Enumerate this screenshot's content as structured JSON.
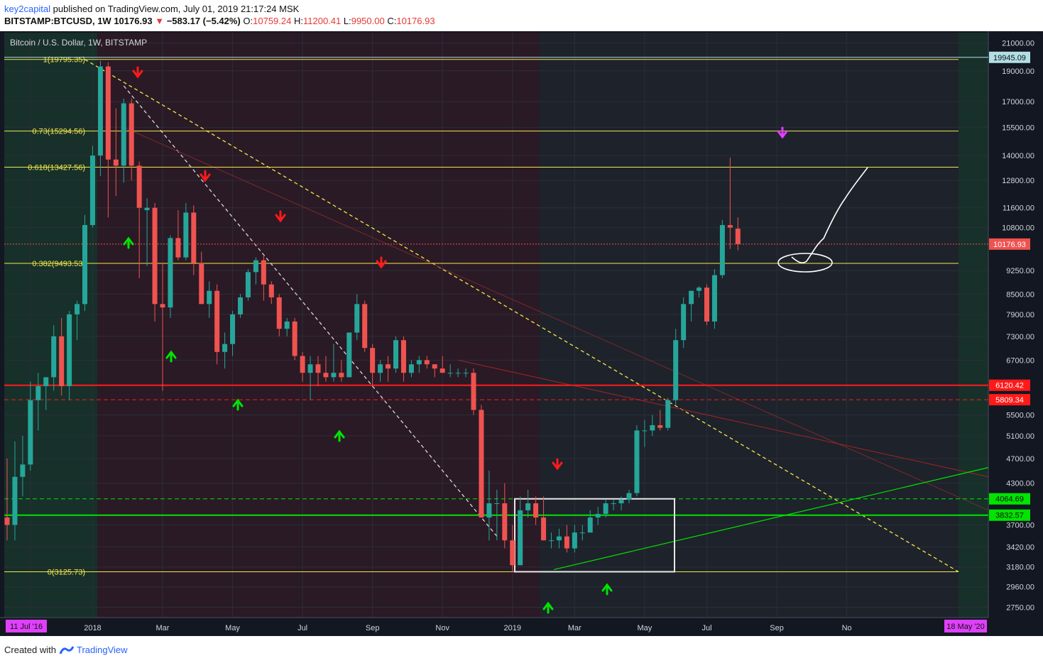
{
  "header": {
    "author": "key2capital",
    "published": "published on TradingView.com, July 01, 2019 21:17:24 MSK",
    "symbol": "BITSTAMP:BTCUSD, 1W",
    "last": "10176.93",
    "arrow": "▼",
    "change": "−583.17 (−5.42%)",
    "o_label": "O:",
    "o": "10759.24",
    "h_label": "H:",
    "h": "11200.41",
    "l_label": "L:",
    "l": "9950.00",
    "c_label": "C:",
    "c": "10176.93"
  },
  "chart_title": "Bitcoin / U.S. Dollar, 1W, BITSTAMP",
  "footer": {
    "created": "Created with",
    "brand": "TradingView"
  },
  "colors": {
    "up": "#26a69a",
    "down": "#ef5350",
    "fib": "#f5e84b",
    "support": "#00e400",
    "resistance": "#ff1a1a",
    "badge_time": "#e040fb"
  },
  "chart_data": {
    "type": "candlestick",
    "title": "Bitcoin / U.S. Dollar, 1W, BITSTAMP",
    "ylim": [
      2650,
      21800
    ],
    "y_ticks": [
      21000,
      19000,
      17000,
      15500,
      14000,
      12800,
      11600,
      10800,
      9250,
      8500,
      7900,
      7300,
      6700,
      5500,
      5100,
      4700,
      4300,
      3700,
      3420,
      3180,
      2960,
      2750
    ],
    "y_tick_labels": [
      "21000.00",
      "19000.00",
      "17000.00",
      "15500.00",
      "14000.00",
      "12800.00",
      "11600.00",
      "10800.00",
      "9250.00",
      "8500.00",
      "7900.00",
      "7300.00",
      "6700.00",
      "5500.00",
      "5100.00",
      "4700.00",
      "4300.00",
      "3700.00",
      "3420.00",
      "3180.00",
      "2960.00",
      "2750.00"
    ],
    "x_ticks": [
      "Nov",
      "2018",
      "Mar",
      "May",
      "Jul",
      "Sep",
      "Nov",
      "2019",
      "Mar",
      "May",
      "Jul",
      "Sep",
      "No"
    ],
    "x_tick_index": [
      3,
      11,
      20,
      29,
      38,
      47,
      56,
      65,
      73,
      82,
      90,
      99,
      108
    ],
    "x_start_badge": "11 Jul '16",
    "x_end_badge": "18 May '20",
    "candles": [
      {
        "o": 3800,
        "h": 4700,
        "l": 3500,
        "c": 3700
      },
      {
        "o": 3700,
        "h": 5000,
        "l": 3500,
        "c": 4400
      },
      {
        "o": 4400,
        "h": 5100,
        "l": 4100,
        "c": 4600
      },
      {
        "o": 4600,
        "h": 6200,
        "l": 4500,
        "c": 5800
      },
      {
        "o": 5800,
        "h": 6400,
        "l": 5200,
        "c": 6100
      },
      {
        "o": 6100,
        "h": 6300,
        "l": 5600,
        "c": 6300
      },
      {
        "o": 6300,
        "h": 7600,
        "l": 6000,
        "c": 7300
      },
      {
        "o": 7300,
        "h": 7800,
        "l": 5900,
        "c": 6100
      },
      {
        "o": 6100,
        "h": 8000,
        "l": 5800,
        "c": 7900
      },
      {
        "o": 7900,
        "h": 8300,
        "l": 7200,
        "c": 8200
      },
      {
        "o": 8200,
        "h": 11300,
        "l": 8000,
        "c": 10900
      },
      {
        "o": 10900,
        "h": 14500,
        "l": 10800,
        "c": 14000
      },
      {
        "o": 14000,
        "h": 19700,
        "l": 13000,
        "c": 19300
      },
      {
        "o": 19300,
        "h": 19600,
        "l": 11200,
        "c": 13800
      },
      {
        "o": 13800,
        "h": 16600,
        "l": 12100,
        "c": 13500
      },
      {
        "o": 13500,
        "h": 17200,
        "l": 12700,
        "c": 16900
      },
      {
        "o": 16900,
        "h": 17200,
        "l": 12800,
        "c": 13500
      },
      {
        "o": 13500,
        "h": 13700,
        "l": 9000,
        "c": 11600
      },
      {
        "o": 11500,
        "h": 12000,
        "l": 9400,
        "c": 11600
      },
      {
        "o": 11600,
        "h": 11800,
        "l": 7700,
        "c": 8200
      },
      {
        "o": 8200,
        "h": 9500,
        "l": 6000,
        "c": 8100
      },
      {
        "o": 8100,
        "h": 10500,
        "l": 7800,
        "c": 10400
      },
      {
        "o": 10400,
        "h": 11500,
        "l": 9600,
        "c": 9700
      },
      {
        "o": 9700,
        "h": 11800,
        "l": 9600,
        "c": 11400
      },
      {
        "o": 11400,
        "h": 11700,
        "l": 9100,
        "c": 9500
      },
      {
        "o": 9500,
        "h": 9900,
        "l": 8200,
        "c": 8200
      },
      {
        "o": 8200,
        "h": 8900,
        "l": 7800,
        "c": 8600
      },
      {
        "o": 8600,
        "h": 8800,
        "l": 6600,
        "c": 6900
      },
      {
        "o": 6900,
        "h": 7400,
        "l": 6500,
        "c": 7100
      },
      {
        "o": 7100,
        "h": 8000,
        "l": 6800,
        "c": 7900
      },
      {
        "o": 7900,
        "h": 8500,
        "l": 7800,
        "c": 8400
      },
      {
        "o": 8400,
        "h": 9300,
        "l": 8300,
        "c": 9200
      },
      {
        "o": 9200,
        "h": 9700,
        "l": 8800,
        "c": 9600
      },
      {
        "o": 9600,
        "h": 9800,
        "l": 8300,
        "c": 8800
      },
      {
        "o": 8800,
        "h": 8900,
        "l": 8200,
        "c": 8400
      },
      {
        "o": 8400,
        "h": 8500,
        "l": 7300,
        "c": 7500
      },
      {
        "o": 7500,
        "h": 7800,
        "l": 7300,
        "c": 7700
      },
      {
        "o": 7700,
        "h": 7800,
        "l": 6700,
        "c": 6800
      },
      {
        "o": 6800,
        "h": 6900,
        "l": 6200,
        "c": 6400
      },
      {
        "o": 6400,
        "h": 6800,
        "l": 5800,
        "c": 6600
      },
      {
        "o": 6600,
        "h": 6800,
        "l": 6100,
        "c": 6400
      },
      {
        "o": 6400,
        "h": 6800,
        "l": 6200,
        "c": 6300
      },
      {
        "o": 6300,
        "h": 7100,
        "l": 6200,
        "c": 6400
      },
      {
        "o": 6400,
        "h": 6700,
        "l": 6200,
        "c": 6300
      },
      {
        "o": 6300,
        "h": 7400,
        "l": 6300,
        "c": 7400
      },
      {
        "o": 7400,
        "h": 8500,
        "l": 7200,
        "c": 8200
      },
      {
        "o": 8200,
        "h": 8300,
        "l": 6900,
        "c": 7000
      },
      {
        "o": 7000,
        "h": 7100,
        "l": 6100,
        "c": 6400
      },
      {
        "o": 6400,
        "h": 6700,
        "l": 6200,
        "c": 6600
      },
      {
        "o": 6600,
        "h": 6800,
        "l": 6200,
        "c": 6500
      },
      {
        "o": 6500,
        "h": 7300,
        "l": 6400,
        "c": 7200
      },
      {
        "o": 7200,
        "h": 7300,
        "l": 6200,
        "c": 6400
      },
      {
        "o": 6400,
        "h": 6700,
        "l": 6300,
        "c": 6600
      },
      {
        "o": 6600,
        "h": 6800,
        "l": 6400,
        "c": 6700
      },
      {
        "o": 6700,
        "h": 6800,
        "l": 6500,
        "c": 6600
      },
      {
        "o": 6600,
        "h": 6600,
        "l": 6300,
        "c": 6500
      },
      {
        "o": 6500,
        "h": 6800,
        "l": 6400,
        "c": 6400
      },
      {
        "o": 6400,
        "h": 6600,
        "l": 6300,
        "c": 6400
      },
      {
        "o": 6400,
        "h": 6500,
        "l": 6300,
        "c": 6400
      },
      {
        "o": 6400,
        "h": 6500,
        "l": 6300,
        "c": 6400
      },
      {
        "o": 6400,
        "h": 6500,
        "l": 5500,
        "c": 5600
      },
      {
        "o": 5600,
        "h": 5700,
        "l": 3800,
        "c": 3800
      },
      {
        "o": 3800,
        "h": 4500,
        "l": 3500,
        "c": 4000
      },
      {
        "o": 4000,
        "h": 4200,
        "l": 3500,
        "c": 4000
      },
      {
        "o": 4000,
        "h": 4300,
        "l": 3400,
        "c": 3500
      },
      {
        "o": 3500,
        "h": 3700,
        "l": 3120,
        "c": 3200
      },
      {
        "o": 3200,
        "h": 4100,
        "l": 3200,
        "c": 3900
      },
      {
        "o": 3900,
        "h": 4200,
        "l": 3800,
        "c": 4000
      },
      {
        "o": 4000,
        "h": 4100,
        "l": 3700,
        "c": 3800
      },
      {
        "o": 3800,
        "h": 4100,
        "l": 3500,
        "c": 3500
      },
      {
        "o": 3500,
        "h": 3600,
        "l": 3400,
        "c": 3500
      },
      {
        "o": 3500,
        "h": 3650,
        "l": 3400,
        "c": 3550
      },
      {
        "o": 3550,
        "h": 3700,
        "l": 3350,
        "c": 3400
      },
      {
        "o": 3400,
        "h": 3700,
        "l": 3350,
        "c": 3600
      },
      {
        "o": 3600,
        "h": 3700,
        "l": 3500,
        "c": 3600
      },
      {
        "o": 3600,
        "h": 3900,
        "l": 3600,
        "c": 3800
      },
      {
        "o": 3800,
        "h": 3950,
        "l": 3700,
        "c": 3850
      },
      {
        "o": 3850,
        "h": 4050,
        "l": 3800,
        "c": 4000
      },
      {
        "o": 4000,
        "h": 4050,
        "l": 3900,
        "c": 4000
      },
      {
        "o": 4000,
        "h": 4100,
        "l": 3900,
        "c": 4050
      },
      {
        "o": 4050,
        "h": 4200,
        "l": 4000,
        "c": 4150
      },
      {
        "o": 4150,
        "h": 5300,
        "l": 4100,
        "c": 5200
      },
      {
        "o": 5200,
        "h": 5400,
        "l": 4900,
        "c": 5200
      },
      {
        "o": 5200,
        "h": 5500,
        "l": 5100,
        "c": 5300
      },
      {
        "o": 5300,
        "h": 5600,
        "l": 5200,
        "c": 5250
      },
      {
        "o": 5250,
        "h": 5850,
        "l": 5200,
        "c": 5800
      },
      {
        "o": 5800,
        "h": 7500,
        "l": 5700,
        "c": 7200
      },
      {
        "o": 7200,
        "h": 8400,
        "l": 7000,
        "c": 8200
      },
      {
        "o": 8200,
        "h": 8600,
        "l": 7700,
        "c": 8600
      },
      {
        "o": 8600,
        "h": 8750,
        "l": 8400,
        "c": 8700
      },
      {
        "o": 8700,
        "h": 8800,
        "l": 7600,
        "c": 7700
      },
      {
        "o": 7700,
        "h": 9300,
        "l": 7500,
        "c": 9100
      },
      {
        "o": 9100,
        "h": 11100,
        "l": 9000,
        "c": 10900
      },
      {
        "o": 10900,
        "h": 13900,
        "l": 10000,
        "c": 10800
      },
      {
        "o": 10759,
        "h": 11200,
        "l": 9950,
        "c": 10177
      }
    ],
    "fib_levels": [
      {
        "label": "1(19795.35)",
        "value": 19795.35
      },
      {
        "label": "0.73(15294.56)",
        "value": 15294.56
      },
      {
        "label": "0.618(13427.56)",
        "value": 13427.56
      },
      {
        "label": "0.382(9493.53)",
        "value": 9493.53
      },
      {
        "label": "0(3125.73)",
        "value": 3125.73
      }
    ],
    "horizontal_lines": [
      {
        "label": "19945.09",
        "value": 19945.09,
        "style": "solid",
        "color": "#b2dfe6"
      },
      {
        "label": "10176.93",
        "value": 10176.93,
        "style": "dotted",
        "color": "#ef5350"
      },
      {
        "label": "6120.42",
        "value": 6120.42,
        "style": "solid",
        "color": "#ff1a1a"
      },
      {
        "label": "5809.34",
        "value": 5809.34,
        "style": "dashed",
        "color": "#ff1a1a"
      },
      {
        "label": "4064.69",
        "value": 4064.69,
        "style": "dashed",
        "color": "#00e400"
      },
      {
        "label": "3832.57",
        "value": 3832.57,
        "style": "solid",
        "color": "#00e400"
      }
    ]
  }
}
